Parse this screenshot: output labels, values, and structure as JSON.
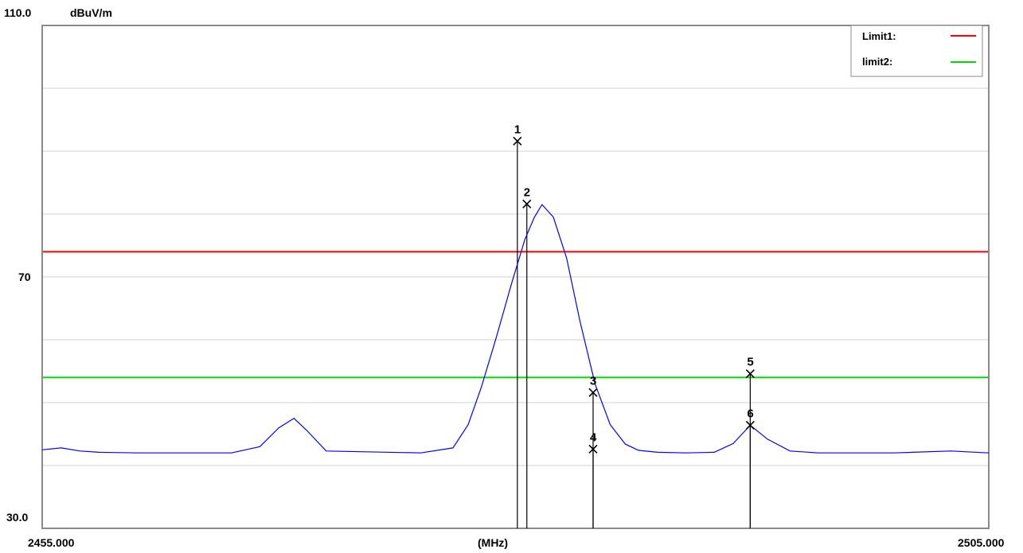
{
  "chart_data": {
    "type": "line",
    "y_unit": "dBuV/m",
    "x_unit": "(MHz)",
    "y_tick_labels": [
      "110.0",
      "70",
      "30.0"
    ],
    "x_tick_labels": [
      "2455.000",
      "2505.000"
    ],
    "ylim": [
      30,
      110
    ],
    "xlim": [
      2455,
      2505
    ],
    "grid": true,
    "legend_position": "top-right",
    "limits": [
      {
        "name": "Limit1:",
        "value": 74,
        "color": "#ff0000"
      },
      {
        "name": "limit2:",
        "value": 54,
        "color": "#00dd00"
      }
    ],
    "series": [
      {
        "color": "#0000ff",
        "x": [
          2455,
          2456,
          2457,
          2458,
          2460,
          2465,
          2466.5,
          2467.5,
          2468.3,
          2469,
          2470,
          2475,
          2476.7,
          2477.5,
          2478.2,
          2479,
          2479.8,
          2480.5,
          2481,
          2481.4,
          2482,
          2482.7,
          2483.4,
          2484.2,
          2485,
          2485.8,
          2486.5,
          2487.5,
          2489,
          2490.5,
          2491.5,
          2492.4,
          2493.3,
          2494.5,
          2496,
          2500,
          2503,
          2505
        ],
        "y": [
          42.5,
          42.8,
          42.3,
          42.1,
          42.0,
          42.0,
          43.0,
          46.0,
          47.5,
          45.5,
          42.3,
          42.0,
          42.8,
          46.5,
          52.5,
          60.5,
          69.0,
          76.0,
          79.5,
          81.5,
          79.5,
          73.0,
          63.0,
          53.0,
          46.5,
          43.4,
          42.4,
          42.1,
          42.0,
          42.1,
          43.5,
          46.4,
          44.2,
          42.3,
          42.0,
          42.0,
          42.3,
          42.0
        ]
      }
    ],
    "markers": [
      {
        "label": "1",
        "x": 2480.1,
        "y": 91.6
      },
      {
        "label": "2",
        "x": 2480.6,
        "y": 81.6
      },
      {
        "label": "3",
        "x": 2484.1,
        "y": 51.6
      },
      {
        "label": "4",
        "x": 2484.1,
        "y": 42.6
      },
      {
        "label": "5",
        "x": 2492.4,
        "y": 54.6
      },
      {
        "label": "6",
        "x": 2492.4,
        "y": 46.4
      }
    ]
  }
}
